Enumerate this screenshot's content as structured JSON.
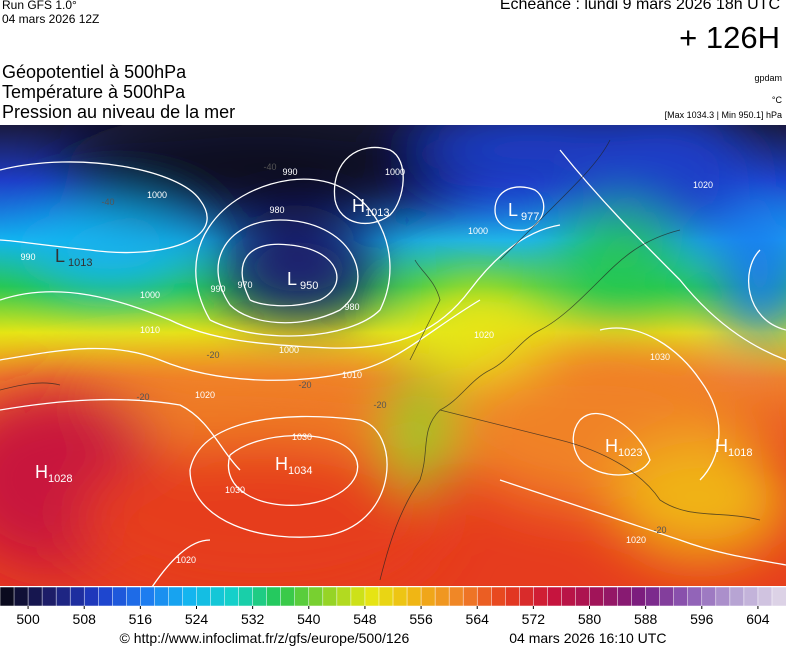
{
  "header": {
    "run": "Run GFS 1.0°",
    "run_date": "04 mars 2026 12Z",
    "forecast": "Echéance : lundi 9 mars 2026 18h UTC",
    "lead": "+ 126H"
  },
  "titles": [
    "Géopotentiel à 500hPa",
    "Température à 500hPa",
    "Pression au niveau de la mer"
  ],
  "units": {
    "geopotential": "gpdam",
    "temperature": "°C",
    "pressure": "[Max 1034.3 | Min 950.1] hPa"
  },
  "centers": [
    {
      "letter": "H",
      "value": 1028
    },
    {
      "letter": "H",
      "value": 1034
    },
    {
      "letter": "L",
      "value": 950
    },
    {
      "letter": "H",
      "value": 1013
    },
    {
      "letter": "L",
      "value": 977
    },
    {
      "letter": "L",
      "value": 1013
    },
    {
      "letter": "H",
      "value": 1023
    },
    {
      "letter": "H",
      "value": 1018
    }
  ],
  "isobar_labels": [
    1000,
    990,
    990,
    980,
    1000,
    1000,
    970,
    990,
    980,
    1000,
    1010,
    1000,
    1010,
    1020,
    1030,
    1030,
    1020,
    1020,
    1030,
    1020,
    1020
  ],
  "temperature_labels": [
    -40,
    -40,
    -20,
    -20,
    -20,
    -20,
    -20
  ],
  "colorbar": {
    "lim": [
      496,
      608
    ],
    "ticks": [
      500,
      508,
      516,
      524,
      532,
      540,
      548,
      556,
      564,
      572,
      580,
      588,
      596,
      604
    ],
    "colors": [
      "#0a0a1e",
      "#1e1e6e",
      "#1e3cc8",
      "#1e78f0",
      "#14b4f0",
      "#14d2c8",
      "#28c850",
      "#8cd228",
      "#e6e614",
      "#f0b414",
      "#f08228",
      "#e63c1e",
      "#c8143c",
      "#a0145a",
      "#781e82",
      "#8c5ab4",
      "#b4a0d2",
      "#dcd2e6"
    ]
  },
  "footer": {
    "source": "© http://www.infoclimat.fr/z/gfs/europe/500/126",
    "generated": "04 mars 2026 16:10 UTC"
  }
}
